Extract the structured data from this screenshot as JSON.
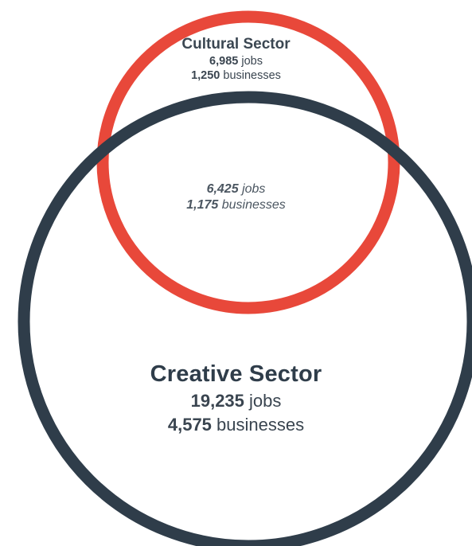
{
  "colors": {
    "cultural_ring": "#e8483a",
    "creative_ring": "#2f3d4a",
    "text": "#3a4550"
  },
  "cultural": {
    "title": "Cultural Sector",
    "jobs_value": "6,985",
    "jobs_unit": "jobs",
    "businesses_value": "1,250",
    "businesses_unit": "businesses"
  },
  "overlap": {
    "jobs_value": "6,425",
    "jobs_unit": "jobs",
    "businesses_value": "1,175",
    "businesses_unit": "businesses"
  },
  "creative": {
    "title": "Creative Sector",
    "jobs_value": "19,235",
    "jobs_unit": "jobs",
    "businesses_value": "4,575",
    "businesses_unit": "businesses"
  }
}
